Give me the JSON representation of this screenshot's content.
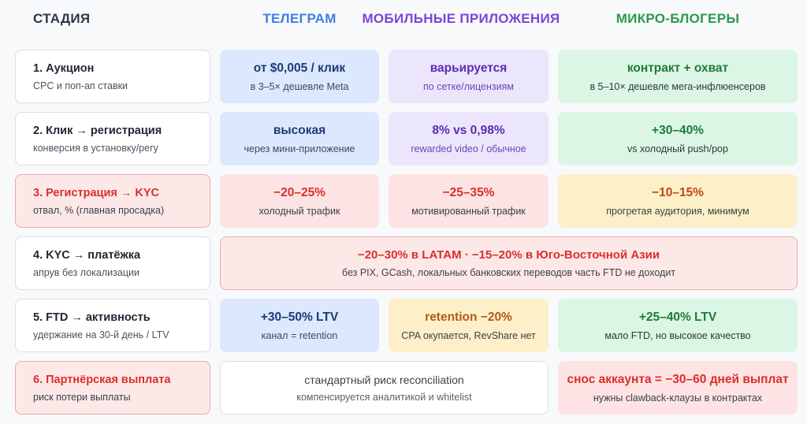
{
  "headers": {
    "stage": "СТАДИЯ",
    "telegram": "ТЕЛЕГРАМ",
    "mobile": "МОБИЛЬНЫЕ ПРИЛОЖЕНИЯ",
    "micro": "МИКРО-БЛОГЕРЫ"
  },
  "rows": [
    {
      "stage": {
        "title": "1. Аукцион",
        "sub": "CPC и поп-ап ставки"
      },
      "telegram": {
        "value": "от $0,005 / клик",
        "sub": "в 3–5× дешевле Meta"
      },
      "mobile": {
        "value": "варьируется",
        "sub": "по сетке/лицензиям"
      },
      "micro": {
        "value": "контракт + охват",
        "sub": "в 5–10× дешевле мега-инфлюенсеров"
      }
    },
    {
      "stage": {
        "title": "2. Клик → регистрация",
        "sub": "конверсия в установку/регу"
      },
      "telegram": {
        "value": "высокая",
        "sub": "через мини-приложение"
      },
      "mobile": {
        "value": "8% vs 0,98%",
        "sub": "rewarded video / обычное"
      },
      "micro": {
        "value": "+30–40%",
        "sub": "vs холодный push/pop"
      }
    },
    {
      "stage": {
        "title": "3. Регистрация → KYC",
        "sub": "отвал, % (главная просадка)"
      },
      "telegram": {
        "value": "−20–25%",
        "sub": "холодный трафик"
      },
      "mobile": {
        "value": "−25–35%",
        "sub": "мотивированный трафик"
      },
      "micro": {
        "value": "−10–15%",
        "sub": "прогретая аудитория, минимум"
      }
    },
    {
      "stage": {
        "title": "4. KYC → платёжка",
        "sub": "апрув без локализации"
      },
      "merged": {
        "value": "−20–30% в LATAM · −15–20% в Юго-Восточной Азии",
        "sub": "без PIX, GCash, локальных банковских переводов часть FTD не доходит"
      }
    },
    {
      "stage": {
        "title": "5. FTD → активность",
        "sub": "удержание на 30-й день / LTV"
      },
      "telegram": {
        "value": "+30–50% LTV",
        "sub": "канал = retention"
      },
      "mobile": {
        "value": "retention −20%",
        "sub": "CPA окупается, RevShare нет"
      },
      "micro": {
        "value": "+25–40% LTV",
        "sub": "мало FTD, но высокое качество"
      }
    },
    {
      "stage": {
        "title": "6. Партнёрская выплата",
        "sub": "риск потери выплаты"
      },
      "tgmob": {
        "value": "стандартный риск reconciliation",
        "sub": "компенсируется аналитикой и whitelist"
      },
      "micro": {
        "value": "снос аккаунта = −30–60 дней выплат",
        "sub": "нужны clawback-клаузы в контрактах"
      }
    }
  ]
}
